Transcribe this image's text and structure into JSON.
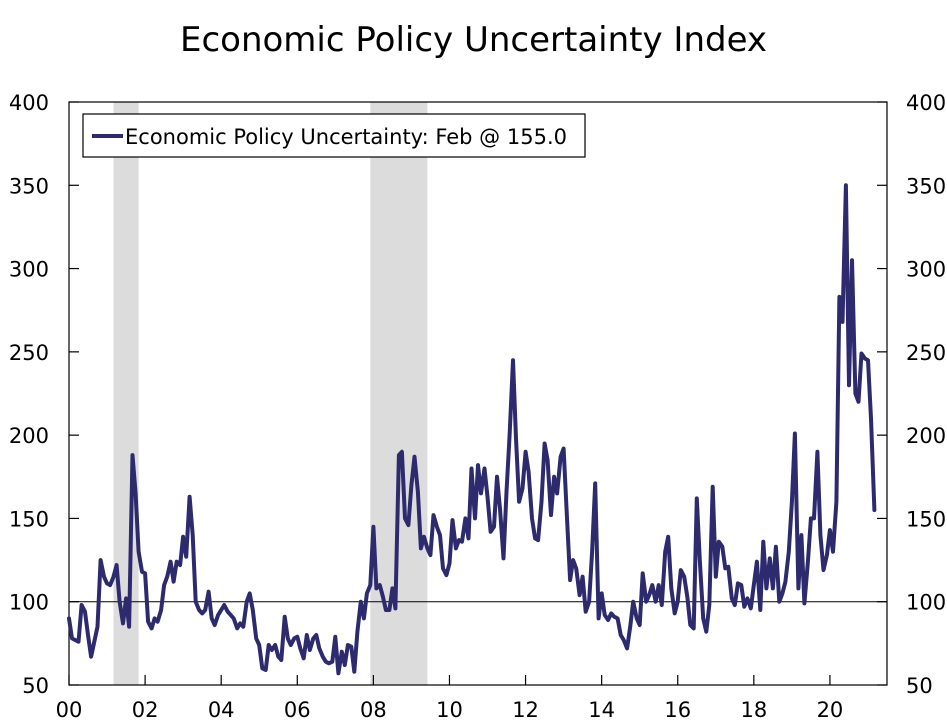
{
  "chart_data": {
    "type": "line",
    "title": "Economic Policy Uncertainty Index",
    "xlabel": "",
    "ylabel": "",
    "ylim": [
      50,
      400
    ],
    "y_ticks": [
      "50",
      "100",
      "150",
      "200",
      "250",
      "300",
      "350",
      "400"
    ],
    "x_ticks": [
      {
        "label": "00",
        "year": 2000
      },
      {
        "label": "02",
        "year": 2002
      },
      {
        "label": "04",
        "year": 2004
      },
      {
        "label": "06",
        "year": 2006
      },
      {
        "label": "08",
        "year": 2008
      },
      {
        "label": "10",
        "year": 2010
      },
      {
        "label": "12",
        "year": 2012
      },
      {
        "label": "14",
        "year": 2014
      },
      {
        "label": "16",
        "year": 2016
      },
      {
        "label": "18",
        "year": 2018
      },
      {
        "label": "20",
        "year": 2020
      }
    ],
    "xlim": [
      2000,
      2021.5
    ],
    "reference_line": 100,
    "recessions": [
      [
        2001.17,
        2001.83
      ],
      [
        2007.92,
        2009.42
      ]
    ],
    "legend_position": "top-left",
    "grid": false,
    "series": [
      {
        "name": "Economic Policy Uncertainty: Feb @ 155.0",
        "color": "#2e2a6e",
        "points": [
          [
            2000.0,
            90
          ],
          [
            2000.08,
            78
          ],
          [
            2000.25,
            76
          ],
          [
            2000.33,
            98
          ],
          [
            2000.42,
            94
          ],
          [
            2000.5,
            80
          ],
          [
            2000.58,
            67
          ],
          [
            2000.75,
            85
          ],
          [
            2000.83,
            125
          ],
          [
            2000.92,
            115
          ],
          [
            2001.0,
            111
          ],
          [
            2001.08,
            110
          ],
          [
            2001.17,
            115
          ],
          [
            2001.25,
            122
          ],
          [
            2001.33,
            100
          ],
          [
            2001.42,
            87
          ],
          [
            2001.5,
            102
          ],
          [
            2001.58,
            85
          ],
          [
            2001.67,
            188
          ],
          [
            2001.75,
            165
          ],
          [
            2001.83,
            130
          ],
          [
            2001.92,
            118
          ],
          [
            2002.0,
            117
          ],
          [
            2002.08,
            88
          ],
          [
            2002.17,
            84
          ],
          [
            2002.25,
            90
          ],
          [
            2002.33,
            88
          ],
          [
            2002.42,
            95
          ],
          [
            2002.5,
            110
          ],
          [
            2002.58,
            115
          ],
          [
            2002.67,
            124
          ],
          [
            2002.75,
            112
          ],
          [
            2002.83,
            124
          ],
          [
            2002.92,
            122
          ],
          [
            2003.0,
            139
          ],
          [
            2003.08,
            127
          ],
          [
            2003.17,
            163
          ],
          [
            2003.25,
            140
          ],
          [
            2003.33,
            100
          ],
          [
            2003.42,
            95
          ],
          [
            2003.5,
            93
          ],
          [
            2003.58,
            95
          ],
          [
            2003.67,
            106
          ],
          [
            2003.75,
            90
          ],
          [
            2003.83,
            86
          ],
          [
            2003.92,
            92
          ],
          [
            2004.0,
            95
          ],
          [
            2004.08,
            98
          ],
          [
            2004.17,
            94
          ],
          [
            2004.25,
            92
          ],
          [
            2004.33,
            90
          ],
          [
            2004.42,
            84
          ],
          [
            2004.5,
            87
          ],
          [
            2004.58,
            85
          ],
          [
            2004.67,
            100
          ],
          [
            2004.75,
            105
          ],
          [
            2004.83,
            95
          ],
          [
            2004.92,
            78
          ],
          [
            2005.0,
            74
          ],
          [
            2005.08,
            60
          ],
          [
            2005.17,
            59
          ],
          [
            2005.25,
            74
          ],
          [
            2005.33,
            71
          ],
          [
            2005.42,
            74
          ],
          [
            2005.5,
            67
          ],
          [
            2005.58,
            65
          ],
          [
            2005.67,
            91
          ],
          [
            2005.75,
            78
          ],
          [
            2005.83,
            74
          ],
          [
            2005.92,
            78
          ],
          [
            2006.0,
            79
          ],
          [
            2006.08,
            72
          ],
          [
            2006.17,
            66
          ],
          [
            2006.25,
            80
          ],
          [
            2006.33,
            71
          ],
          [
            2006.42,
            78
          ],
          [
            2006.5,
            80
          ],
          [
            2006.58,
            72
          ],
          [
            2006.67,
            67
          ],
          [
            2006.75,
            64
          ],
          [
            2006.83,
            63
          ],
          [
            2006.92,
            64
          ],
          [
            2007.0,
            79
          ],
          [
            2007.08,
            57
          ],
          [
            2007.17,
            70
          ],
          [
            2007.25,
            62
          ],
          [
            2007.33,
            74
          ],
          [
            2007.42,
            73
          ],
          [
            2007.5,
            58
          ],
          [
            2007.58,
            82
          ],
          [
            2007.67,
            100
          ],
          [
            2007.75,
            90
          ],
          [
            2007.83,
            105
          ],
          [
            2007.92,
            110
          ],
          [
            2008.0,
            145
          ],
          [
            2008.08,
            108
          ],
          [
            2008.17,
            110
          ],
          [
            2008.25,
            103
          ],
          [
            2008.33,
            95
          ],
          [
            2008.42,
            95
          ],
          [
            2008.5,
            108
          ],
          [
            2008.58,
            96
          ],
          [
            2008.67,
            188
          ],
          [
            2008.75,
            190
          ],
          [
            2008.83,
            150
          ],
          [
            2008.92,
            146
          ],
          [
            2009.0,
            170
          ],
          [
            2009.08,
            187
          ],
          [
            2009.17,
            166
          ],
          [
            2009.25,
            132
          ],
          [
            2009.33,
            139
          ],
          [
            2009.42,
            132
          ],
          [
            2009.5,
            128
          ],
          [
            2009.58,
            152
          ],
          [
            2009.67,
            145
          ],
          [
            2009.75,
            140
          ],
          [
            2009.83,
            120
          ],
          [
            2009.92,
            116
          ],
          [
            2010.0,
            123
          ],
          [
            2010.08,
            149
          ],
          [
            2010.17,
            132
          ],
          [
            2010.25,
            137
          ],
          [
            2010.33,
            136
          ],
          [
            2010.42,
            150
          ],
          [
            2010.5,
            138
          ],
          [
            2010.58,
            180
          ],
          [
            2010.67,
            150
          ],
          [
            2010.75,
            182
          ],
          [
            2010.83,
            165
          ],
          [
            2010.92,
            180
          ],
          [
            2011.0,
            163
          ],
          [
            2011.08,
            142
          ],
          [
            2011.17,
            145
          ],
          [
            2011.25,
            175
          ],
          [
            2011.33,
            155
          ],
          [
            2011.42,
            126
          ],
          [
            2011.5,
            166
          ],
          [
            2011.58,
            200
          ],
          [
            2011.67,
            245
          ],
          [
            2011.75,
            198
          ],
          [
            2011.83,
            160
          ],
          [
            2011.92,
            168
          ],
          [
            2012.0,
            190
          ],
          [
            2012.08,
            178
          ],
          [
            2012.17,
            150
          ],
          [
            2012.25,
            138
          ],
          [
            2012.33,
            137
          ],
          [
            2012.42,
            160
          ],
          [
            2012.5,
            195
          ],
          [
            2012.58,
            185
          ],
          [
            2012.67,
            152
          ],
          [
            2012.75,
            175
          ],
          [
            2012.83,
            165
          ],
          [
            2012.92,
            187
          ],
          [
            2013.0,
            192
          ],
          [
            2013.08,
            155
          ],
          [
            2013.17,
            113
          ],
          [
            2013.25,
            125
          ],
          [
            2013.33,
            120
          ],
          [
            2013.42,
            104
          ],
          [
            2013.5,
            115
          ],
          [
            2013.58,
            94
          ],
          [
            2013.67,
            100
          ],
          [
            2013.75,
            130
          ],
          [
            2013.83,
            171
          ],
          [
            2013.92,
            90
          ],
          [
            2014.0,
            105
          ],
          [
            2014.08,
            92
          ],
          [
            2014.17,
            89
          ],
          [
            2014.25,
            93
          ],
          [
            2014.33,
            91
          ],
          [
            2014.42,
            90
          ],
          [
            2014.5,
            80
          ],
          [
            2014.58,
            77
          ],
          [
            2014.67,
            72
          ],
          [
            2014.75,
            85
          ],
          [
            2014.83,
            100
          ],
          [
            2014.92,
            90
          ],
          [
            2015.0,
            86
          ],
          [
            2015.08,
            117
          ],
          [
            2015.17,
            100
          ],
          [
            2015.25,
            104
          ],
          [
            2015.33,
            110
          ],
          [
            2015.42,
            100
          ],
          [
            2015.5,
            110
          ],
          [
            2015.58,
            98
          ],
          [
            2015.67,
            130
          ],
          [
            2015.75,
            139
          ],
          [
            2015.83,
            108
          ],
          [
            2015.92,
            93
          ],
          [
            2016.0,
            100
          ],
          [
            2016.08,
            119
          ],
          [
            2016.17,
            115
          ],
          [
            2016.25,
            103
          ],
          [
            2016.33,
            86
          ],
          [
            2016.42,
            84
          ],
          [
            2016.5,
            162
          ],
          [
            2016.58,
            125
          ],
          [
            2016.67,
            90
          ],
          [
            2016.75,
            82
          ],
          [
            2016.83,
            98
          ],
          [
            2016.92,
            169
          ],
          [
            2017.0,
            115
          ],
          [
            2017.08,
            136
          ],
          [
            2017.17,
            133
          ],
          [
            2017.25,
            120
          ],
          [
            2017.33,
            121
          ],
          [
            2017.42,
            102
          ],
          [
            2017.5,
            98
          ],
          [
            2017.58,
            111
          ],
          [
            2017.67,
            110
          ],
          [
            2017.75,
            97
          ],
          [
            2017.83,
            102
          ],
          [
            2017.92,
            96
          ],
          [
            2018.0,
            110
          ],
          [
            2018.08,
            124
          ],
          [
            2018.17,
            95
          ],
          [
            2018.25,
            136
          ],
          [
            2018.33,
            108
          ],
          [
            2018.42,
            126
          ],
          [
            2018.5,
            108
          ],
          [
            2018.58,
            133
          ],
          [
            2018.67,
            100
          ],
          [
            2018.75,
            105
          ],
          [
            2018.83,
            112
          ],
          [
            2018.92,
            130
          ],
          [
            2019.0,
            160
          ],
          [
            2019.08,
            201
          ],
          [
            2019.17,
            108
          ],
          [
            2019.25,
            140
          ],
          [
            2019.33,
            99
          ],
          [
            2019.42,
            124
          ],
          [
            2019.5,
            150
          ],
          [
            2019.58,
            150
          ],
          [
            2019.67,
            190
          ],
          [
            2019.75,
            140
          ],
          [
            2019.83,
            119
          ],
          [
            2019.92,
            128
          ],
          [
            2020.0,
            143
          ],
          [
            2020.08,
            130
          ],
          [
            2020.17,
            160
          ],
          [
            2020.25,
            283
          ],
          [
            2020.33,
            268
          ],
          [
            2020.42,
            350
          ],
          [
            2020.5,
            230
          ],
          [
            2020.58,
            305
          ],
          [
            2020.67,
            225
          ],
          [
            2020.75,
            220
          ],
          [
            2020.83,
            249
          ],
          [
            2020.92,
            246
          ],
          [
            2021.0,
            245
          ],
          [
            2021.08,
            210
          ],
          [
            2021.17,
            155
          ]
        ]
      }
    ]
  }
}
